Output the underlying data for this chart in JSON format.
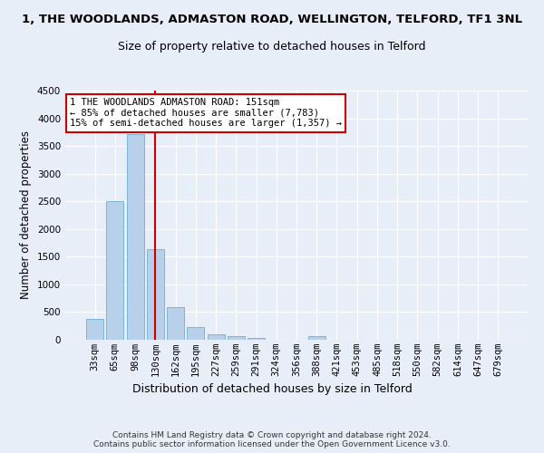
{
  "title": "1, THE WOODLANDS, ADMASTON ROAD, WELLINGTON, TELFORD, TF1 3NL",
  "subtitle": "Size of property relative to detached houses in Telford",
  "xlabel": "Distribution of detached houses by size in Telford",
  "ylabel": "Number of detached properties",
  "categories": [
    "33sqm",
    "65sqm",
    "98sqm",
    "130sqm",
    "162sqm",
    "195sqm",
    "227sqm",
    "259sqm",
    "291sqm",
    "324sqm",
    "356sqm",
    "388sqm",
    "421sqm",
    "453sqm",
    "485sqm",
    "518sqm",
    "550sqm",
    "582sqm",
    "614sqm",
    "647sqm",
    "679sqm"
  ],
  "values": [
    370,
    2500,
    3720,
    1630,
    585,
    225,
    105,
    65,
    40,
    0,
    0,
    60,
    0,
    0,
    0,
    0,
    0,
    0,
    0,
    0,
    0
  ],
  "bar_color": "#b8d0ea",
  "bar_edge_color": "#6aaed6",
  "vline_x": 3,
  "vline_color": "#cc0000",
  "ylim": [
    0,
    4500
  ],
  "yticks": [
    0,
    500,
    1000,
    1500,
    2000,
    2500,
    3000,
    3500,
    4000,
    4500
  ],
  "annotation_text": "1 THE WOODLANDS ADMASTON ROAD: 151sqm\n← 85% of detached houses are smaller (7,783)\n15% of semi-detached houses are larger (1,357) →",
  "annotation_box_facecolor": "#ffffff",
  "annotation_box_edgecolor": "#cc0000",
  "footer_text": "Contains HM Land Registry data © Crown copyright and database right 2024.\nContains public sector information licensed under the Open Government Licence v3.0.",
  "bg_color": "#e8eef8",
  "grid_color": "#ffffff",
  "title_fontsize": 9.5,
  "subtitle_fontsize": 9,
  "ylabel_fontsize": 8.5,
  "xlabel_fontsize": 9,
  "tick_fontsize": 7.5,
  "annot_fontsize": 7.5,
  "footer_fontsize": 6.5
}
